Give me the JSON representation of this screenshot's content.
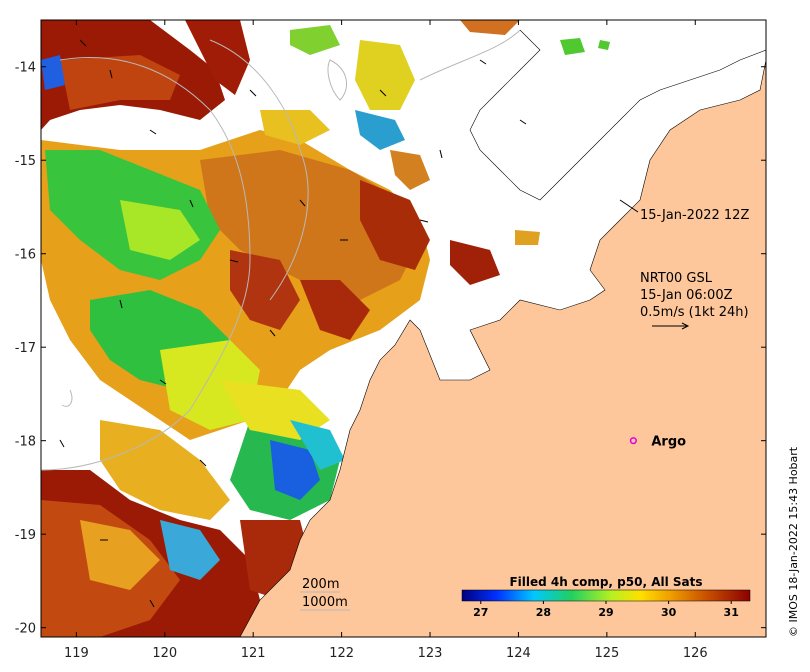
{
  "map": {
    "longitude_ticks": [
      "119",
      "120",
      "121",
      "122",
      "123",
      "124",
      "125",
      "126"
    ],
    "latitude_ticks": [
      "-14",
      "-15",
      "-16",
      "-17",
      "-18",
      "-19",
      "-20"
    ],
    "lon_range": [
      118.6,
      126.8
    ],
    "lat_range": [
      -20.1,
      -13.5
    ]
  },
  "annotations": {
    "track_time": "15-Jan-2022 12Z",
    "product_line1": "NRT00 GSL",
    "product_line2": "15-Jan 06:00Z",
    "product_line3": "0.5m/s (1kt 24h)"
  },
  "argo": {
    "label": "Argo",
    "lon": 125.3,
    "lat": -18.0,
    "color": "#e000e0"
  },
  "contours": {
    "label_200m": "200m",
    "label_1000m": "1000m"
  },
  "colorbar": {
    "title": "Filled 4h comp, p50, All Sats",
    "ticks": [
      "27",
      "28",
      "29",
      "30",
      "31"
    ],
    "range": [
      26.7,
      31.3
    ],
    "colors": [
      "#00007f",
      "#0030ff",
      "#00c8ff",
      "#20d060",
      "#b8f020",
      "#ffe000",
      "#f0a000",
      "#c85000",
      "#8b0000"
    ]
  },
  "credit": "© IMOS 18-Jan-2022 15:43 Hobart",
  "colors": {
    "land": "#fdc79b",
    "missing": "#ffffff",
    "frame": "#000000"
  }
}
